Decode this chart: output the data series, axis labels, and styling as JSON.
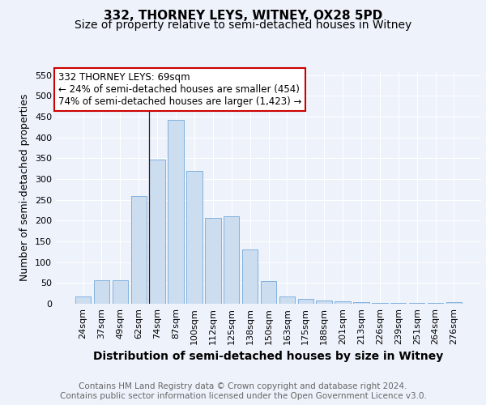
{
  "title": "332, THORNEY LEYS, WITNEY, OX28 5PD",
  "subtitle": "Size of property relative to semi-detached houses in Witney",
  "xlabel": "Distribution of semi-detached houses by size in Witney",
  "ylabel": "Number of semi-detached properties",
  "categories": [
    "24sqm",
    "37sqm",
    "49sqm",
    "62sqm",
    "74sqm",
    "87sqm",
    "100sqm",
    "112sqm",
    "125sqm",
    "138sqm",
    "150sqm",
    "163sqm",
    "175sqm",
    "188sqm",
    "201sqm",
    "213sqm",
    "226sqm",
    "239sqm",
    "251sqm",
    "264sqm",
    "276sqm"
  ],
  "values": [
    18,
    57,
    57,
    260,
    347,
    443,
    320,
    207,
    210,
    130,
    55,
    17,
    12,
    8,
    5,
    3,
    1,
    1,
    2,
    1,
    4
  ],
  "bar_color_normal": "#ccddf0",
  "bar_edge_color": "#5b9bd5",
  "background_color": "#eef2fb",
  "grid_color": "#ffffff",
  "annotation_text": "332 THORNEY LEYS: 69sqm\n← 24% of semi-detached houses are smaller (454)\n74% of semi-detached houses are larger (1,423) →",
  "annotation_box_color": "#ffffff",
  "annotation_box_edge": "#cc0000",
  "property_line_x": 3.575,
  "ylim": [
    0,
    560
  ],
  "yticks": [
    0,
    50,
    100,
    150,
    200,
    250,
    300,
    350,
    400,
    450,
    500,
    550
  ],
  "footer_text": "Contains HM Land Registry data © Crown copyright and database right 2024.\nContains public sector information licensed under the Open Government Licence v3.0.",
  "title_fontsize": 11,
  "subtitle_fontsize": 10,
  "xlabel_fontsize": 10,
  "ylabel_fontsize": 9,
  "tick_fontsize": 8,
  "annotation_fontsize": 8.5,
  "footer_fontsize": 7.5
}
